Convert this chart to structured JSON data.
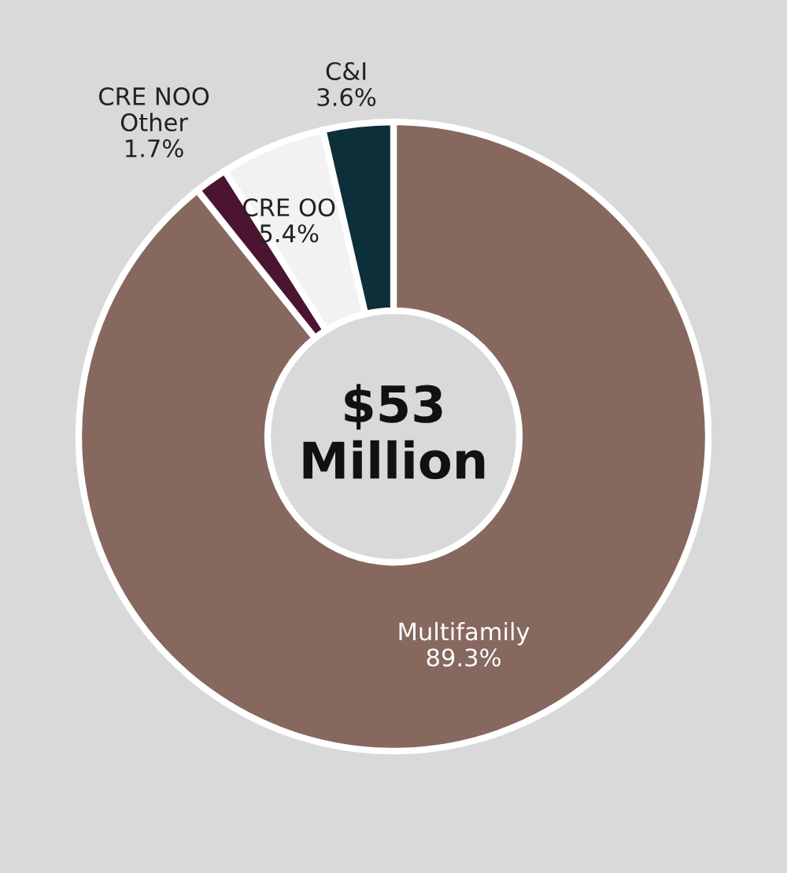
{
  "chart_data": {
    "type": "donut",
    "categories": [
      "Multifamily",
      "CRE NOO Other",
      "CRE OO",
      "C&I"
    ],
    "values": [
      89.3,
      1.7,
      5.4,
      3.6
    ],
    "colors": [
      "#86685f",
      "#4b1532",
      "#f2f2f2",
      "#0c2f39"
    ],
    "value_labels": [
      "89.3%",
      "1.7%",
      "5.4%",
      "3.6%"
    ],
    "annotations": [
      "$53\nMillion"
    ],
    "legend": false
  }
}
